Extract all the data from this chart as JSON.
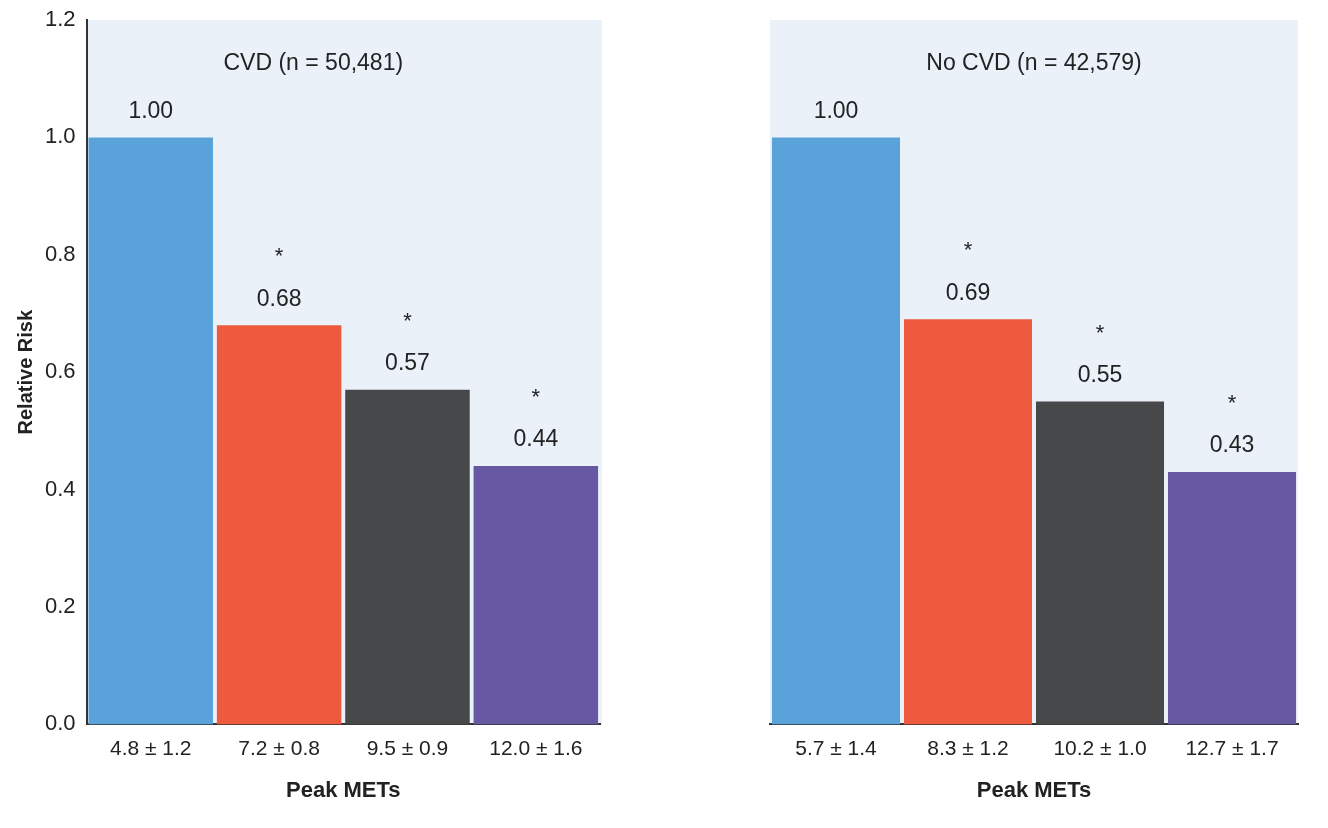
{
  "chart_data": [
    {
      "type": "bar",
      "title": "CVD (n = 50,481)",
      "xlabel": "Peak METs",
      "ylabel": "Relative Risk",
      "categories": [
        "4.8 ± 1.2",
        "7.2 ± 0.8",
        "9.5 ± 0.9",
        "12.0 ± 1.6"
      ],
      "values": [
        1.0,
        0.68,
        0.57,
        0.44
      ],
      "value_labels": [
        "1.00",
        "0.68",
        "0.57",
        "0.44"
      ],
      "colors": [
        "#5aa3da",
        "#ee5a3e",
        "#464849",
        "#6659a2"
      ],
      "ylim": [
        0,
        1.2
      ],
      "yticks": [
        {
          "value": 0,
          "label": "0.0"
        },
        {
          "value": 0.2,
          "label": "0.2"
        },
        {
          "value": 0.4,
          "label": "0.4"
        },
        {
          "value": 0.6,
          "label": "0.6"
        },
        {
          "value": 0.8,
          "label": "0.8"
        },
        {
          "value": 1,
          "label": "1.0"
        },
        {
          "value": 1.2,
          "label": "1.2"
        }
      ],
      "annotations": [
        "*",
        "*",
        "*"
      ]
    },
    {
      "type": "bar",
      "title": "No CVD (n = 42,579)",
      "xlabel": "Peak METs",
      "categories": [
        "5.7 ± 1.4",
        "8.3 ± 1.2",
        "10.2 ± 1.0",
        "12.7 ± 1.7"
      ],
      "values": [
        1.0,
        0.69,
        0.55,
        0.43
      ],
      "value_labels": [
        "1.00",
        "0.69",
        "0.55",
        "0.43"
      ],
      "colors": [
        "#5aa3da",
        "#ee5a3e",
        "#464849",
        "#6659a2"
      ],
      "ylim": [
        0,
        1.2
      ],
      "tick_labels": "x",
      "annotations": [
        "*",
        "*",
        "*"
      ]
    }
  ]
}
